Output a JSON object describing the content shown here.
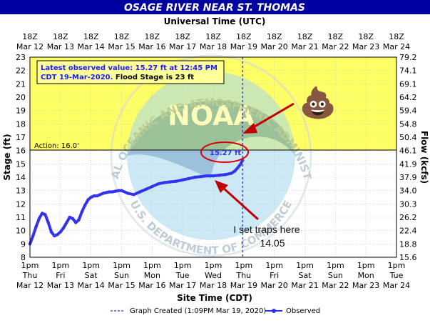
{
  "chart_data": {
    "type": "line",
    "title": "OSAGE RIVER NEAR ST. THOMAS",
    "top_axis_title": "Universal Time (UTC)",
    "top_ticks": [
      {
        "time": "18Z",
        "date": "Mar 12"
      },
      {
        "time": "18Z",
        "date": "Mar 13"
      },
      {
        "time": "18Z",
        "date": "Mar 14"
      },
      {
        "time": "18Z",
        "date": "Mar 15"
      },
      {
        "time": "18Z",
        "date": "Mar 16"
      },
      {
        "time": "18Z",
        "date": "Mar 17"
      },
      {
        "time": "18Z",
        "date": "Mar 18"
      },
      {
        "time": "18Z",
        "date": "Mar 19"
      },
      {
        "time": "18Z",
        "date": "Mar 20"
      },
      {
        "time": "18Z",
        "date": "Mar 21"
      },
      {
        "time": "18Z",
        "date": "Mar 22"
      },
      {
        "time": "18Z",
        "date": "Mar 23"
      },
      {
        "time": "18Z",
        "date": "Mar 24"
      }
    ],
    "bottom_axis_title": "Site Time (CDT)",
    "bottom_ticks": [
      {
        "time": "1pm",
        "day": "Thu",
        "date": "Mar 12"
      },
      {
        "time": "1pm",
        "day": "Fri",
        "date": "Mar 13"
      },
      {
        "time": "1pm",
        "day": "Sat",
        "date": "Mar 14"
      },
      {
        "time": "1pm",
        "day": "Sun",
        "date": "Mar 15"
      },
      {
        "time": "1pm",
        "day": "Mon",
        "date": "Mar 16"
      },
      {
        "time": "1pm",
        "day": "Tue",
        "date": "Mar 17"
      },
      {
        "time": "1pm",
        "day": "Wed",
        "date": "Mar 18"
      },
      {
        "time": "1pm",
        "day": "Thu",
        "date": "Mar 19"
      },
      {
        "time": "1pm",
        "day": "Fri",
        "date": "Mar 20"
      },
      {
        "time": "1pm",
        "day": "Sat",
        "date": "Mar 21"
      },
      {
        "time": "1pm",
        "day": "Sun",
        "date": "Mar 22"
      },
      {
        "time": "1pm",
        "day": "Mon",
        "date": "Mar 23"
      },
      {
        "time": "1pm",
        "day": "Tue",
        "date": "Mar 24"
      }
    ],
    "ylabel": "Stage (ft)",
    "ylim": [
      8,
      23
    ],
    "yticks": [
      8,
      9,
      10,
      11,
      12,
      13,
      14,
      15,
      16,
      17,
      18,
      19,
      20,
      21,
      22,
      23
    ],
    "y2label": "Flow (kcfs)",
    "y2ticks": [
      "15.6",
      "18.8",
      "22.4",
      "26.2",
      "30.3",
      "34.0",
      "37.9",
      "41.9",
      "46.1",
      "50.4",
      "54.8",
      "59.4",
      "64.2",
      "69.1",
      "74.1",
      "79.2"
    ],
    "xlim_days": [
      0,
      12
    ],
    "grid": true,
    "action_stage": 16.0,
    "action_label": "Action: 16.0'",
    "flood_stage": 23,
    "info_box": {
      "line1": "Latest observed value: 15.27 ft at 12:45 PM",
      "line2_date": "CDT 19-Mar-2020.",
      "line2_flood": " Flood Stage is 23 ft"
    },
    "latest_value_label": "15.27 ft",
    "graph_created_day": 6.96,
    "series": [
      {
        "name": "Observed",
        "color": "#3333ee",
        "x": [
          0.0,
          0.1,
          0.2,
          0.3,
          0.4,
          0.5,
          0.6,
          0.7,
          0.8,
          0.9,
          1.0,
          1.1,
          1.2,
          1.3,
          1.4,
          1.5,
          1.6,
          1.7,
          1.8,
          1.9,
          2.0,
          2.1,
          2.2,
          2.3,
          2.4,
          2.5,
          2.6,
          2.7,
          2.8,
          2.9,
          3.0,
          3.2,
          3.4,
          3.6,
          3.8,
          4.0,
          4.2,
          4.4,
          4.6,
          4.8,
          5.0,
          5.2,
          5.4,
          5.6,
          5.8,
          6.0,
          6.2,
          6.4,
          6.6,
          6.7,
          6.8,
          6.9,
          6.96
        ],
        "y": [
          9.0,
          9.6,
          10.3,
          10.9,
          11.3,
          11.2,
          10.6,
          9.9,
          9.6,
          9.7,
          9.9,
          10.2,
          10.6,
          11.0,
          10.9,
          10.6,
          10.8,
          11.4,
          11.9,
          12.3,
          12.5,
          12.6,
          12.6,
          12.7,
          12.8,
          12.85,
          12.9,
          12.9,
          12.95,
          13.0,
          13.0,
          12.8,
          12.7,
          12.9,
          13.1,
          13.3,
          13.5,
          13.6,
          13.65,
          13.7,
          13.8,
          13.9,
          14.0,
          14.05,
          14.1,
          14.1,
          14.15,
          14.2,
          14.3,
          14.45,
          14.7,
          15.0,
          15.27
        ]
      }
    ],
    "legend": {
      "created": "Graph Created (1:09PM Mar 19, 2020)",
      "observed": "Observed",
      "position": "bottom"
    }
  },
  "annotations": {
    "traps_line1": "I set traps here",
    "traps_line2": "14.05",
    "emoji": "💩"
  },
  "watermark": {
    "logo_text": "NOAA",
    "ring_text": "NATIONAL OCEANIC AND ATMOSPHERIC ADMINISTRATION",
    "bottom_text": "U.S. DEPARTMENT OF COMMERCE"
  },
  "colors": {
    "title_bar": "#0000a0",
    "flood_zone": "#ffff66",
    "action_zone": "#ffff66",
    "normal_zone": "#ffffff",
    "series": "#3333ee",
    "arrow": "#c00000"
  }
}
